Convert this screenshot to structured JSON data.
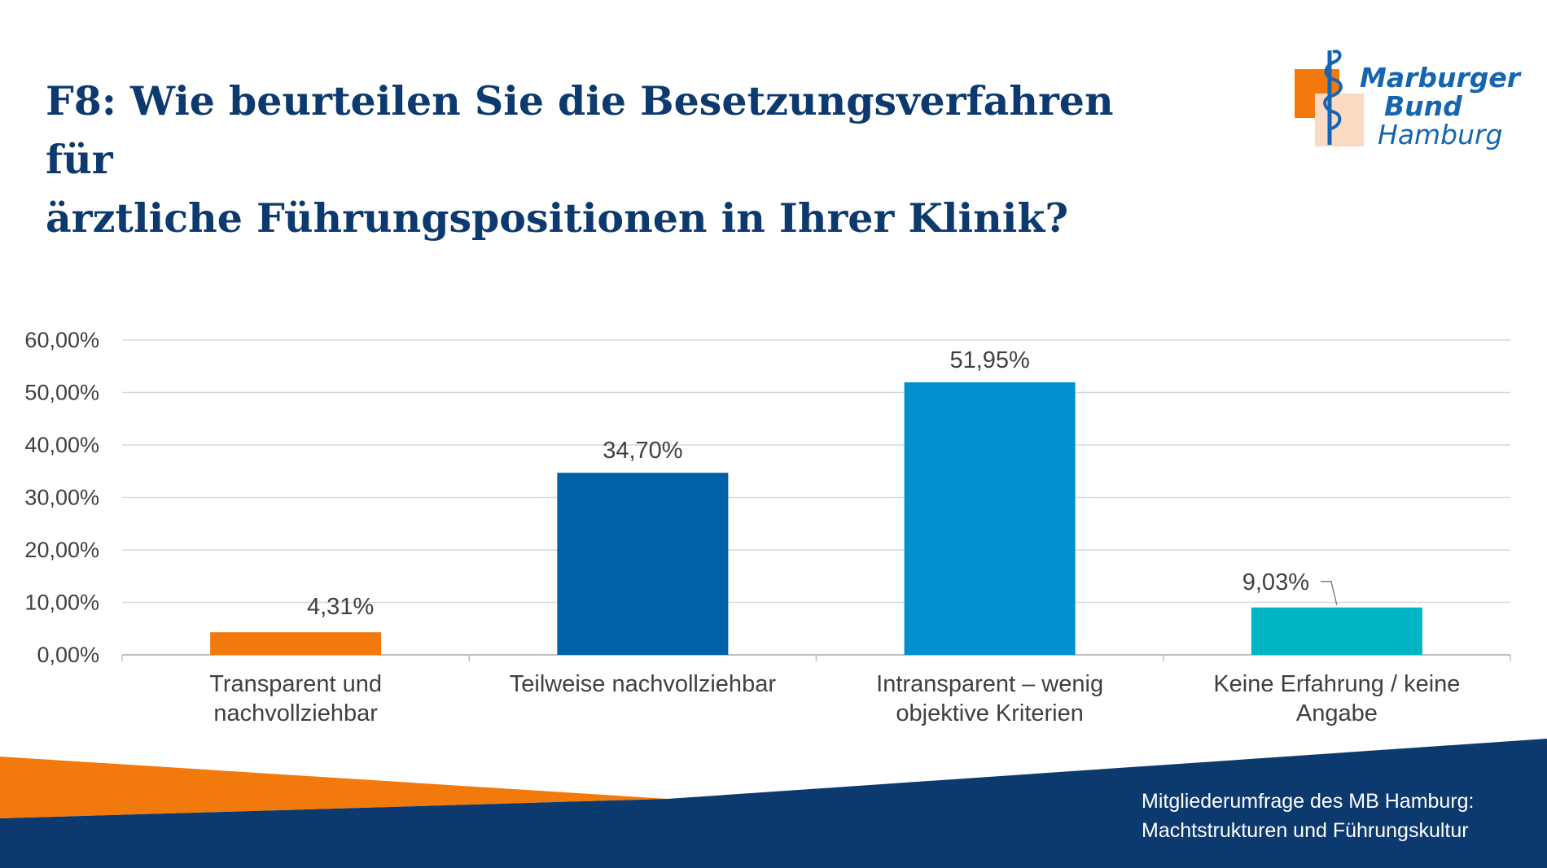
{
  "slide": {
    "title_line1": "F8: Wie beurteilen Sie die Besetzungsverfahren für",
    "title_line2": "ärztliche Führungspositionen in Ihrer Klinik?"
  },
  "logo": {
    "line1": "Marburger",
    "line2": "Bund",
    "line3": "Hamburg",
    "colors": {
      "blue": "#1565b0",
      "orange": "#f27a0d",
      "peach": "#fbd9c3"
    }
  },
  "footer": {
    "line1": "Mitgliederumfrage des MB Hamburg:",
    "line2": "Machtstrukturen und Führungskultur",
    "colors": {
      "navy": "#0d3a6e",
      "orange": "#f27a0d"
    }
  },
  "chart_data": {
    "type": "bar",
    "title": "",
    "xlabel": "",
    "ylabel": "",
    "ylim": [
      0,
      60
    ],
    "yticks": [
      0,
      10,
      20,
      30,
      40,
      50,
      60
    ],
    "ytick_labels": [
      "0,00%",
      "10,00%",
      "20,00%",
      "30,00%",
      "40,00%",
      "50,00%",
      "60,00%"
    ],
    "grid": true,
    "categories": [
      [
        "Transparent und",
        "nachvollziehbar"
      ],
      [
        "Teilweise nachvollziehbar"
      ],
      [
        "Intransparent – wenig",
        "objektive Kriterien"
      ],
      [
        "Keine Erfahrung / keine",
        "Angabe"
      ]
    ],
    "values": [
      4.31,
      34.7,
      51.95,
      9.03
    ],
    "data_labels": [
      "4,31%",
      "34,70%",
      "51,95%",
      "9,03%"
    ],
    "colors": [
      "#f27a0d",
      "#0060a8",
      "#0090cf",
      "#00b5c4"
    ]
  }
}
